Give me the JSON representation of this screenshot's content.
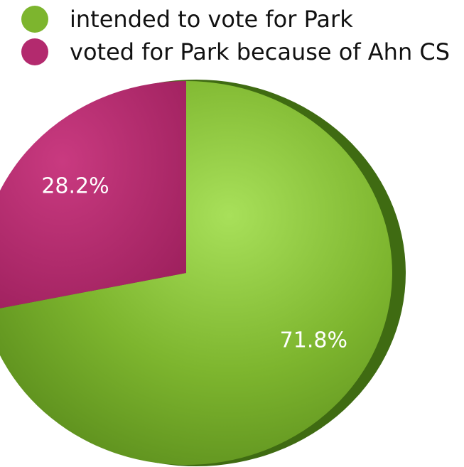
{
  "chart_data": {
    "type": "pie",
    "slices": [
      {
        "label": "intended to vote for Park",
        "value": 71.8,
        "value_label": "71.8%",
        "color": "#7db52e"
      },
      {
        "label": "voted for Park because of Ahn CS",
        "value": 28.2,
        "value_label": "28.2%",
        "color": "#b32a6e"
      }
    ],
    "legend_position": "top-left"
  }
}
